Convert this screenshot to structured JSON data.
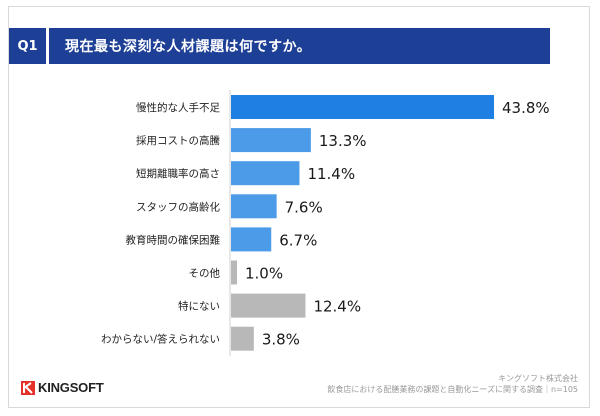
{
  "header": {
    "question_number": "Q1",
    "question_text": "現在最も深刻な人材課題は何ですか。"
  },
  "footer": {
    "company": "キングソフト株式会社",
    "survey": "飲食店における配膳業務の課題と自動化ニーズに関する調査｜n=105",
    "logo_text": "KINGSOFT"
  },
  "colors": {
    "header_bg": "#1d3f95",
    "bar_top": "#1f7fe3",
    "bar_blue": "#4b9be8",
    "bar_gray": "#b8b8b8"
  },
  "chart_data": {
    "type": "bar",
    "orientation": "horizontal",
    "categories": [
      "慢性的な人手不足",
      "採用コストの高騰",
      "短期離職率の高さ",
      "スタッフの高齢化",
      "教育時間の確保困難",
      "その他",
      "特にない",
      "わからない/答えられない"
    ],
    "values": [
      43.8,
      13.3,
      11.4,
      7.6,
      6.7,
      1.0,
      12.4,
      3.8
    ],
    "value_labels": [
      "43.8%",
      "13.3%",
      "11.4%",
      "7.6%",
      "6.7%",
      "1.0%",
      "12.4%",
      "3.8%"
    ],
    "bar_colors": [
      "#1f7fe3",
      "#4b9be8",
      "#4b9be8",
      "#4b9be8",
      "#4b9be8",
      "#b8b8b8",
      "#b8b8b8",
      "#b8b8b8"
    ],
    "unit": "%",
    "xlim": [
      0,
      43.8
    ],
    "grid": false,
    "legend": "none"
  }
}
